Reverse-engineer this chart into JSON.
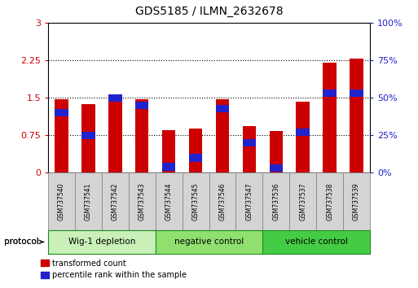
{
  "title": "GDS5185 / ILMN_2632678",
  "samples": [
    "GSM737540",
    "GSM737541",
    "GSM737542",
    "GSM737543",
    "GSM737544",
    "GSM737545",
    "GSM737546",
    "GSM737547",
    "GSM737536",
    "GSM737537",
    "GSM737538",
    "GSM737539"
  ],
  "red_values": [
    1.47,
    1.38,
    1.55,
    1.48,
    0.85,
    0.88,
    1.48,
    0.93,
    0.83,
    1.43,
    2.21,
    2.29
  ],
  "blue_values_pct": [
    40,
    25,
    50,
    45,
    4,
    10,
    43,
    20,
    3,
    27,
    53,
    53
  ],
  "ylim_left": [
    0,
    3
  ],
  "ylim_right": [
    0,
    100
  ],
  "yticks_left": [
    0,
    0.75,
    1.5,
    2.25,
    3
  ],
  "yticks_right": [
    0,
    25,
    50,
    75,
    100
  ],
  "ytick_labels_left": [
    "0",
    "0.75",
    "1.5",
    "2.25",
    "3"
  ],
  "ytick_labels_right": [
    "0%",
    "25%",
    "50%",
    "75%",
    "100%"
  ],
  "groups": [
    {
      "label": "Wig-1 depletion",
      "start": 0,
      "end": 4,
      "color": "#c8f0b8"
    },
    {
      "label": "negative control",
      "start": 4,
      "end": 8,
      "color": "#90e070"
    },
    {
      "label": "vehicle control",
      "start": 8,
      "end": 12,
      "color": "#44cc44"
    }
  ],
  "bar_color": "#cc0000",
  "blue_color": "#2222cc",
  "bar_width": 0.5,
  "blue_segment_pct": 5,
  "legend_red": "transformed count",
  "legend_blue": "percentile rank within the sample",
  "left_tick_color": "#cc0000",
  "right_tick_color": "#2222cc"
}
